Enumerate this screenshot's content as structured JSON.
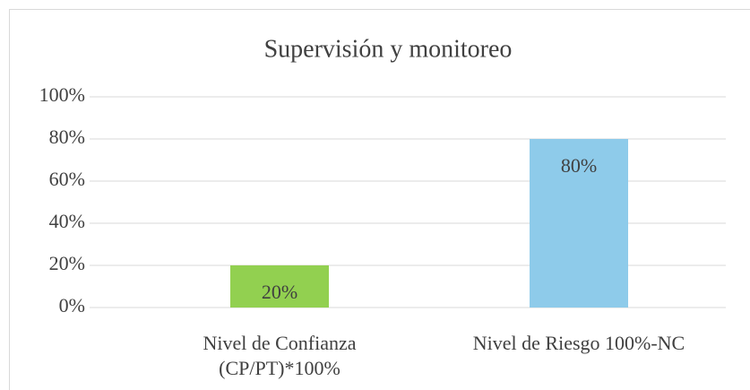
{
  "chart_data": {
    "type": "bar",
    "title": "Supervisión y monitoreo",
    "categories": [
      "Nivel de Confianza\n(CP/PT)*100%",
      "Nivel de Riesgo 100%-NC"
    ],
    "values": [
      20,
      80
    ],
    "value_labels": [
      "20%",
      "80%"
    ],
    "colors": [
      "#92d050",
      "#8ecbea"
    ],
    "ylim": [
      0,
      100
    ],
    "yticks": [
      {
        "value": 0,
        "label": "0%"
      },
      {
        "value": 20,
        "label": "20%"
      },
      {
        "value": 40,
        "label": "40%"
      },
      {
        "value": 60,
        "label": "60%"
      },
      {
        "value": 80,
        "label": "80%"
      },
      {
        "value": 100,
        "label": "100%"
      }
    ],
    "grid": true
  }
}
